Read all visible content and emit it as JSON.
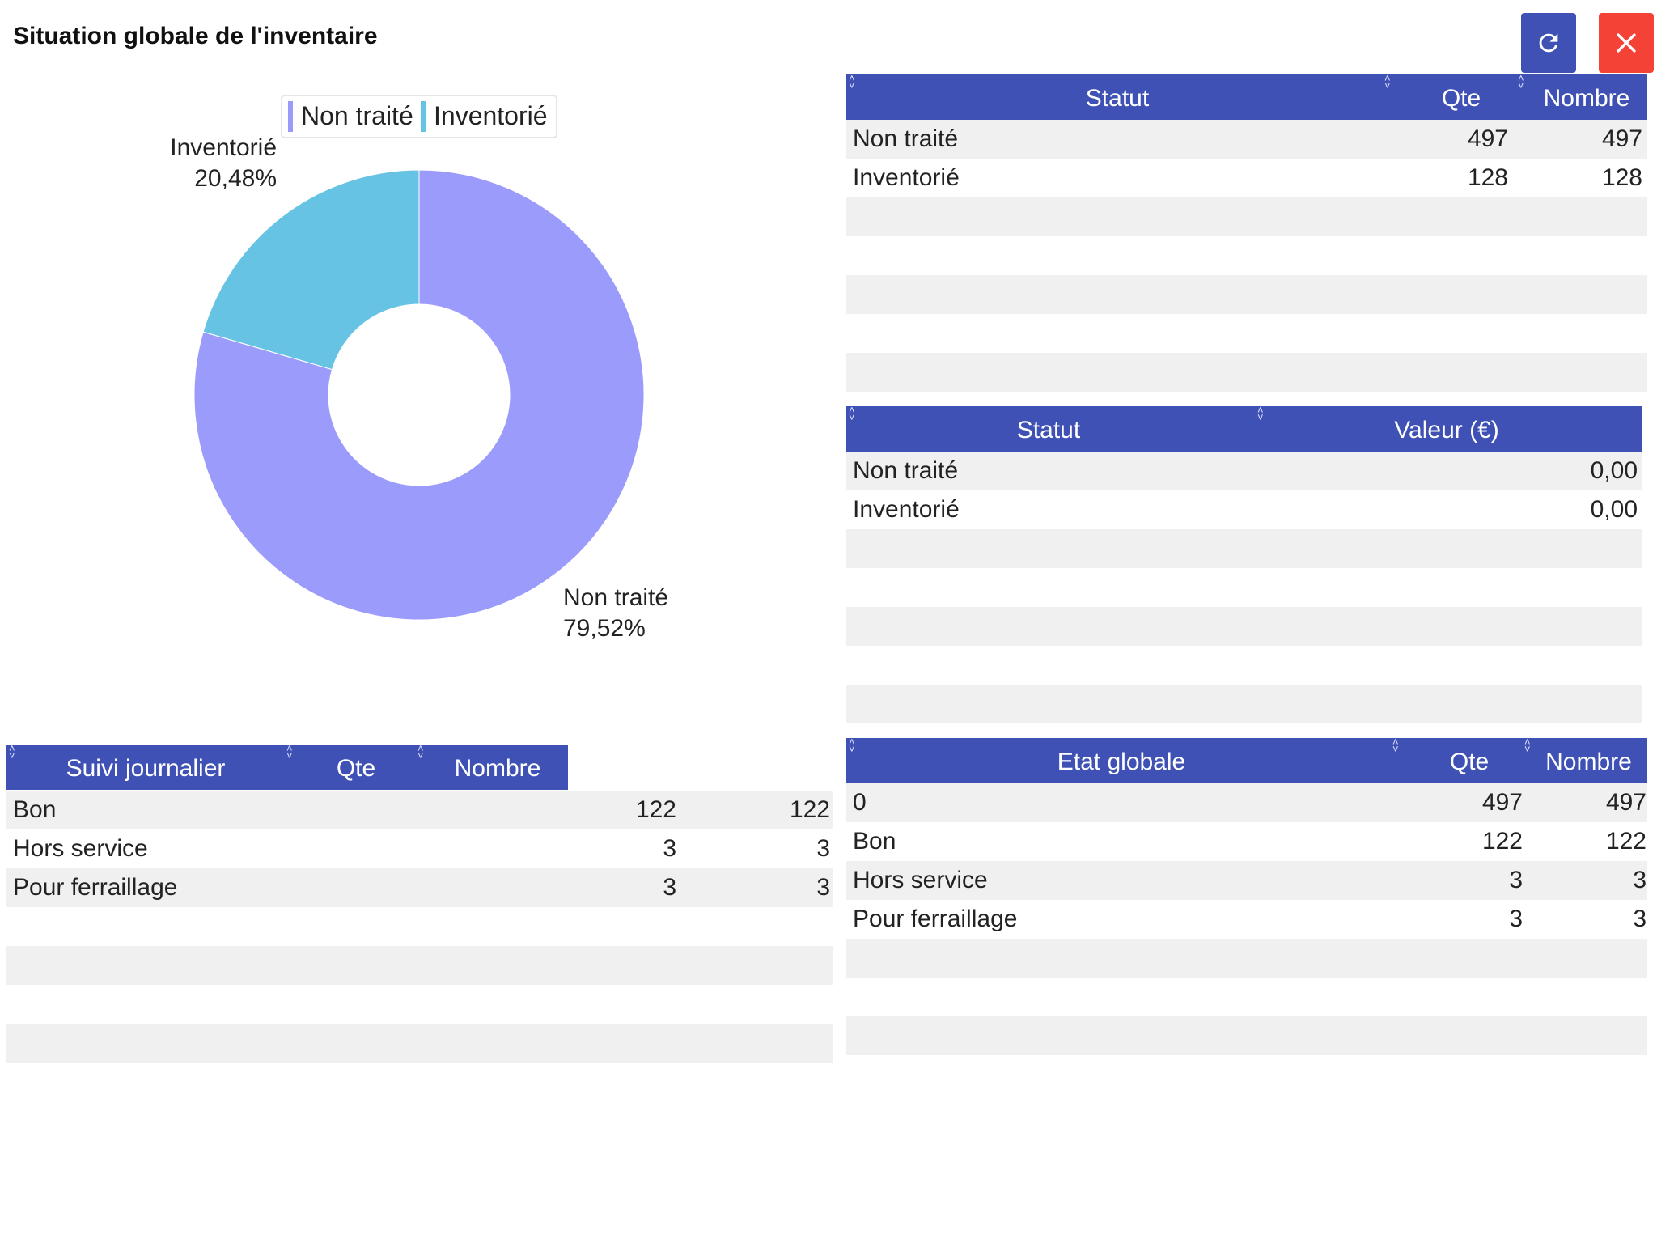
{
  "page": {
    "title": "Situation globale de l'inventaire"
  },
  "toolbar": {
    "refresh_icon": "refresh-icon",
    "close_icon": "close-icon"
  },
  "colors": {
    "accent": "#3f51b5",
    "close": "#f44336",
    "non_traite": "#9b9bfc",
    "inventorie": "#66c3e4",
    "row_alt": "#f0f0f0"
  },
  "chart_data": {
    "type": "pie",
    "donut": true,
    "legend": [
      "Non traité",
      "Inventorié"
    ],
    "legend_position": "top",
    "slices": [
      {
        "label": "Non traité",
        "value": 497,
        "percent_label": "79,52%",
        "color": "#9b9bfc"
      },
      {
        "label": "Inventorié",
        "value": 128,
        "percent_label": "20,48%",
        "color": "#66c3e4"
      }
    ]
  },
  "statut_table": {
    "headers": [
      "Statut",
      "Qte",
      "Nombre"
    ],
    "rows": [
      {
        "statut": "Non traité",
        "qte": "497",
        "nombre": "497"
      },
      {
        "statut": "Inventorié",
        "qte": "128",
        "nombre": "128"
      }
    ]
  },
  "valeur_table": {
    "headers": [
      "Statut",
      "Valeur (€)"
    ],
    "rows": [
      {
        "statut": "Non traité",
        "valeur": "0,00"
      },
      {
        "statut": "Inventorié",
        "valeur": "0,00"
      }
    ]
  },
  "etat_table": {
    "headers": [
      "Etat globale",
      "Qte",
      "Nombre"
    ],
    "rows": [
      {
        "etat": "0",
        "qte": "497",
        "nombre": "497"
      },
      {
        "etat": "Bon",
        "qte": "122",
        "nombre": "122"
      },
      {
        "etat": "Hors service",
        "qte": "3",
        "nombre": "3"
      },
      {
        "etat": "Pour ferraillage",
        "qte": "3",
        "nombre": "3"
      }
    ]
  },
  "suivi_table": {
    "headers": [
      "Suivi journalier",
      "Qte",
      "Nombre"
    ],
    "rows": [
      {
        "suivi": "Bon",
        "qte": "122",
        "nombre": "122"
      },
      {
        "suivi": "Hors service",
        "qte": "3",
        "nombre": "3"
      },
      {
        "suivi": "Pour ferraillage",
        "qte": "3",
        "nombre": "3"
      }
    ]
  }
}
